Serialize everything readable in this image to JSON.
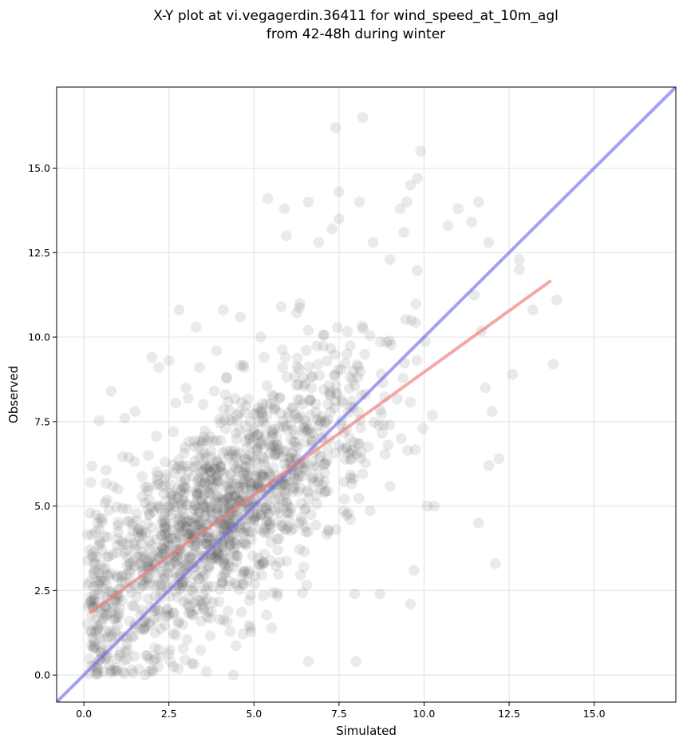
{
  "chart_data": {
    "type": "scatter",
    "title_line1": "X-Y plot at vi.vegagerdin.36411 for wind_speed_at_10m_agl",
    "title_line2": "from 42-48h during winter",
    "xlabel": "Simulated",
    "ylabel": "Observed",
    "xlim": [
      -0.8,
      17.4
    ],
    "ylim": [
      -0.8,
      17.4
    ],
    "xticks": [
      0.0,
      2.5,
      5.0,
      7.5,
      10.0,
      12.5,
      15.0
    ],
    "yticks": [
      0.0,
      2.5,
      5.0,
      7.5,
      10.0,
      12.5,
      15.0
    ],
    "xtick_labels": [
      "0.0",
      "2.5",
      "5.0",
      "7.5",
      "10.0",
      "12.5",
      "15.0"
    ],
    "ytick_labels": [
      "0.0",
      "2.5",
      "5.0",
      "7.5",
      "10.0",
      "12.5",
      "15.0"
    ],
    "grid": true,
    "colors": {
      "points": "#555555",
      "identity_line": "#6f6ff0",
      "regression_line": "#f07a7a"
    },
    "identity_line": {
      "x": [
        -0.8,
        17.4
      ],
      "y": [
        -0.8,
        17.4
      ]
    },
    "regression_line": {
      "x": [
        0.2,
        13.7
      ],
      "y": [
        1.85,
        11.65
      ]
    },
    "points": [
      [
        0.2,
        5.7
      ],
      [
        0.8,
        8.4
      ],
      [
        1.2,
        7.6
      ],
      [
        1.5,
        7.8
      ],
      [
        1.9,
        6.5
      ],
      [
        2.0,
        9.4
      ],
      [
        2.2,
        9.1
      ],
      [
        2.5,
        9.3
      ],
      [
        2.8,
        10.8
      ],
      [
        3.0,
        8.5
      ],
      [
        3.3,
        10.3
      ],
      [
        3.4,
        9.1
      ],
      [
        3.9,
        9.6
      ],
      [
        4.1,
        10.8
      ],
      [
        4.2,
        8.8
      ],
      [
        4.6,
        10.6
      ],
      [
        4.7,
        9.1
      ],
      [
        5.2,
        10.0
      ],
      [
        5.3,
        9.4
      ],
      [
        5.4,
        14.1
      ],
      [
        5.9,
        13.8
      ],
      [
        5.95,
        13.0
      ],
      [
        5.8,
        10.9
      ],
      [
        6.6,
        14.0
      ],
      [
        6.9,
        12.8
      ],
      [
        7.3,
        13.2
      ],
      [
        7.4,
        16.2
      ],
      [
        7.5,
        13.5
      ],
      [
        7.5,
        14.3
      ],
      [
        8.2,
        16.5
      ],
      [
        8.1,
        14.0
      ],
      [
        8.5,
        12.8
      ],
      [
        9.0,
        12.3
      ],
      [
        9.3,
        13.8
      ],
      [
        9.4,
        13.1
      ],
      [
        9.5,
        14.0
      ],
      [
        9.6,
        14.5
      ],
      [
        9.8,
        14.7
      ],
      [
        9.9,
        15.5
      ],
      [
        10.7,
        13.3
      ],
      [
        11.0,
        13.8
      ],
      [
        11.4,
        13.4
      ],
      [
        11.6,
        14.0
      ],
      [
        11.9,
        12.8
      ],
      [
        12.8,
        12.3
      ],
      [
        12.8,
        12.0
      ],
      [
        13.2,
        10.8
      ],
      [
        13.9,
        11.1
      ],
      [
        12.6,
        8.9
      ],
      [
        13.8,
        9.2
      ],
      [
        11.9,
        6.2
      ],
      [
        11.6,
        4.5
      ],
      [
        12.1,
        3.3
      ],
      [
        10.3,
        5.0
      ],
      [
        9.7,
        3.1
      ],
      [
        9.6,
        2.1
      ],
      [
        8.7,
        2.4
      ],
      [
        8.0,
        0.4
      ],
      [
        6.6,
        0.4
      ],
      [
        4.4,
        0.0
      ],
      [
        3.6,
        0.1
      ],
      [
        1.8,
        0.0
      ],
      [
        0.3,
        3.3
      ],
      [
        0.4,
        4.5
      ],
      [
        0.2,
        2.3
      ],
      [
        10.1,
        5.0
      ],
      [
        12.2,
        6.4
      ],
      [
        12.0,
        7.8
      ],
      [
        11.8,
        8.5
      ]
    ],
    "dense_cloud_note": "approximately 1,500 semi-transparent points concentrated along the regression band"
  }
}
